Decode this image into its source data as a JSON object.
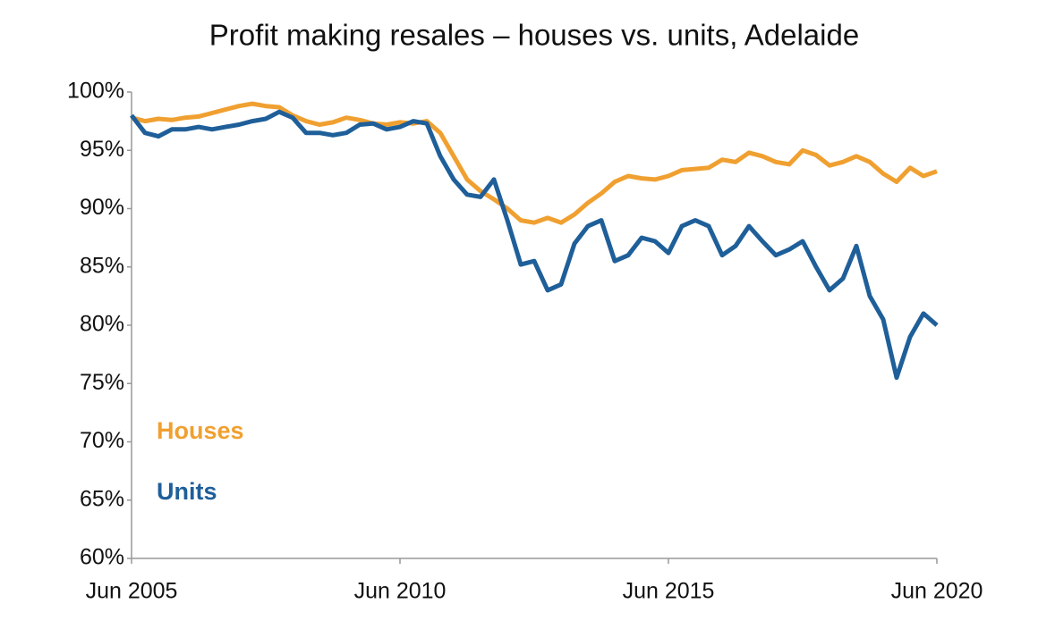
{
  "chart_data": {
    "type": "line",
    "title": "Profit making resales – houses vs. units, Adelaide",
    "categories": [
      "Jun 2005",
      null,
      null,
      null,
      null,
      null,
      null,
      null,
      null,
      null,
      null,
      null,
      null,
      null,
      null,
      null,
      null,
      null,
      null,
      null,
      "Jun 2010",
      null,
      null,
      null,
      null,
      null,
      null,
      null,
      null,
      null,
      null,
      null,
      null,
      null,
      null,
      null,
      null,
      null,
      null,
      null,
      "Jun 2015",
      null,
      null,
      null,
      null,
      null,
      null,
      null,
      null,
      null,
      null,
      null,
      null,
      null,
      null,
      null,
      null,
      null,
      null,
      null,
      "Jun 2020"
    ],
    "series": [
      {
        "name": "Houses",
        "color": "#f0a030",
        "values": [
          97.8,
          97.5,
          97.7,
          97.6,
          97.8,
          97.9,
          98.2,
          98.5,
          98.8,
          99.0,
          98.8,
          98.7,
          98.0,
          97.5,
          97.2,
          97.4,
          97.8,
          97.6,
          97.3,
          97.2,
          97.4,
          97.3,
          97.5,
          96.5,
          94.5,
          92.5,
          91.5,
          90.8,
          90.0,
          89.0,
          88.8,
          89.2,
          88.8,
          89.5,
          90.5,
          91.3,
          92.3,
          92.8,
          92.6,
          92.5,
          92.8,
          93.3,
          93.4,
          93.5,
          94.2,
          94.0,
          94.8,
          94.5,
          94.0,
          93.8,
          95.0,
          94.6,
          93.7,
          94.0,
          94.5,
          94.0,
          93.0,
          92.3,
          93.5,
          92.8,
          93.2
        ]
      },
      {
        "name": "Units",
        "color": "#1f5f99",
        "values": [
          98.0,
          96.5,
          96.2,
          96.8,
          96.8,
          97.0,
          96.8,
          97.0,
          97.2,
          97.5,
          97.7,
          98.3,
          97.8,
          96.5,
          96.5,
          96.3,
          96.5,
          97.2,
          97.3,
          96.8,
          97.0,
          97.5,
          97.3,
          94.5,
          92.5,
          91.2,
          91.0,
          92.5,
          89.0,
          85.2,
          85.5,
          83.0,
          83.5,
          87.0,
          88.5,
          89.0,
          85.5,
          86.0,
          87.5,
          87.2,
          86.2,
          88.5,
          89.0,
          88.5,
          86.0,
          86.8,
          88.5,
          87.2,
          86.0,
          86.5,
          87.2,
          85.0,
          83.0,
          84.0,
          86.8,
          82.5,
          80.5,
          75.5,
          79.0,
          81.0,
          80.0
        ]
      }
    ],
    "ylim": [
      60,
      100
    ],
    "yticks": [
      {
        "value": 60,
        "label": "60%"
      },
      {
        "value": 65,
        "label": "65%"
      },
      {
        "value": 70,
        "label": "70%"
      },
      {
        "value": 75,
        "label": "75%"
      },
      {
        "value": 80,
        "label": "80%"
      },
      {
        "value": 85,
        "label": "85%"
      },
      {
        "value": 90,
        "label": "90%"
      },
      {
        "value": 95,
        "label": "95%"
      },
      {
        "value": 100,
        "label": "100%"
      }
    ],
    "grid": false,
    "legend": "lower left"
  }
}
